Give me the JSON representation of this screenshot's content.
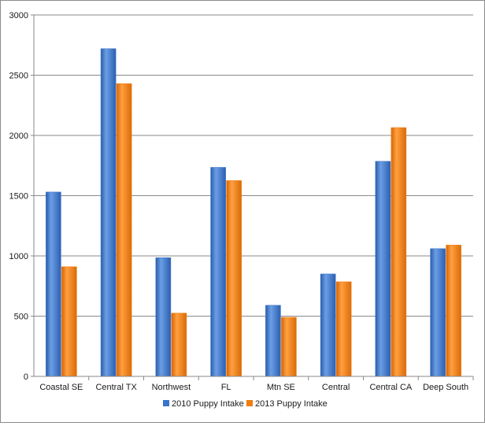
{
  "chart_data": {
    "type": "bar",
    "title": "",
    "xlabel": "",
    "ylabel": "",
    "ylim": [
      0,
      3000
    ],
    "yticks": [
      0,
      500,
      1000,
      1500,
      2000,
      2500,
      3000
    ],
    "grid": true,
    "legend_position": "bottom",
    "categories": [
      "Coastal SE",
      "Central TX",
      "Northwest",
      "FL",
      "Mtn SE",
      "Central",
      "Central CA",
      "Deep South"
    ],
    "series": [
      {
        "name": "2010 Puppy Intake",
        "color": "#3b73c9",
        "values": [
          1530,
          2720,
          985,
          1735,
          590,
          850,
          1785,
          1060
        ]
      },
      {
        "name": "2013 Puppy Intake",
        "color": "#f07c10",
        "values": [
          910,
          2430,
          525,
          1625,
          490,
          785,
          2065,
          1090
        ]
      }
    ]
  }
}
